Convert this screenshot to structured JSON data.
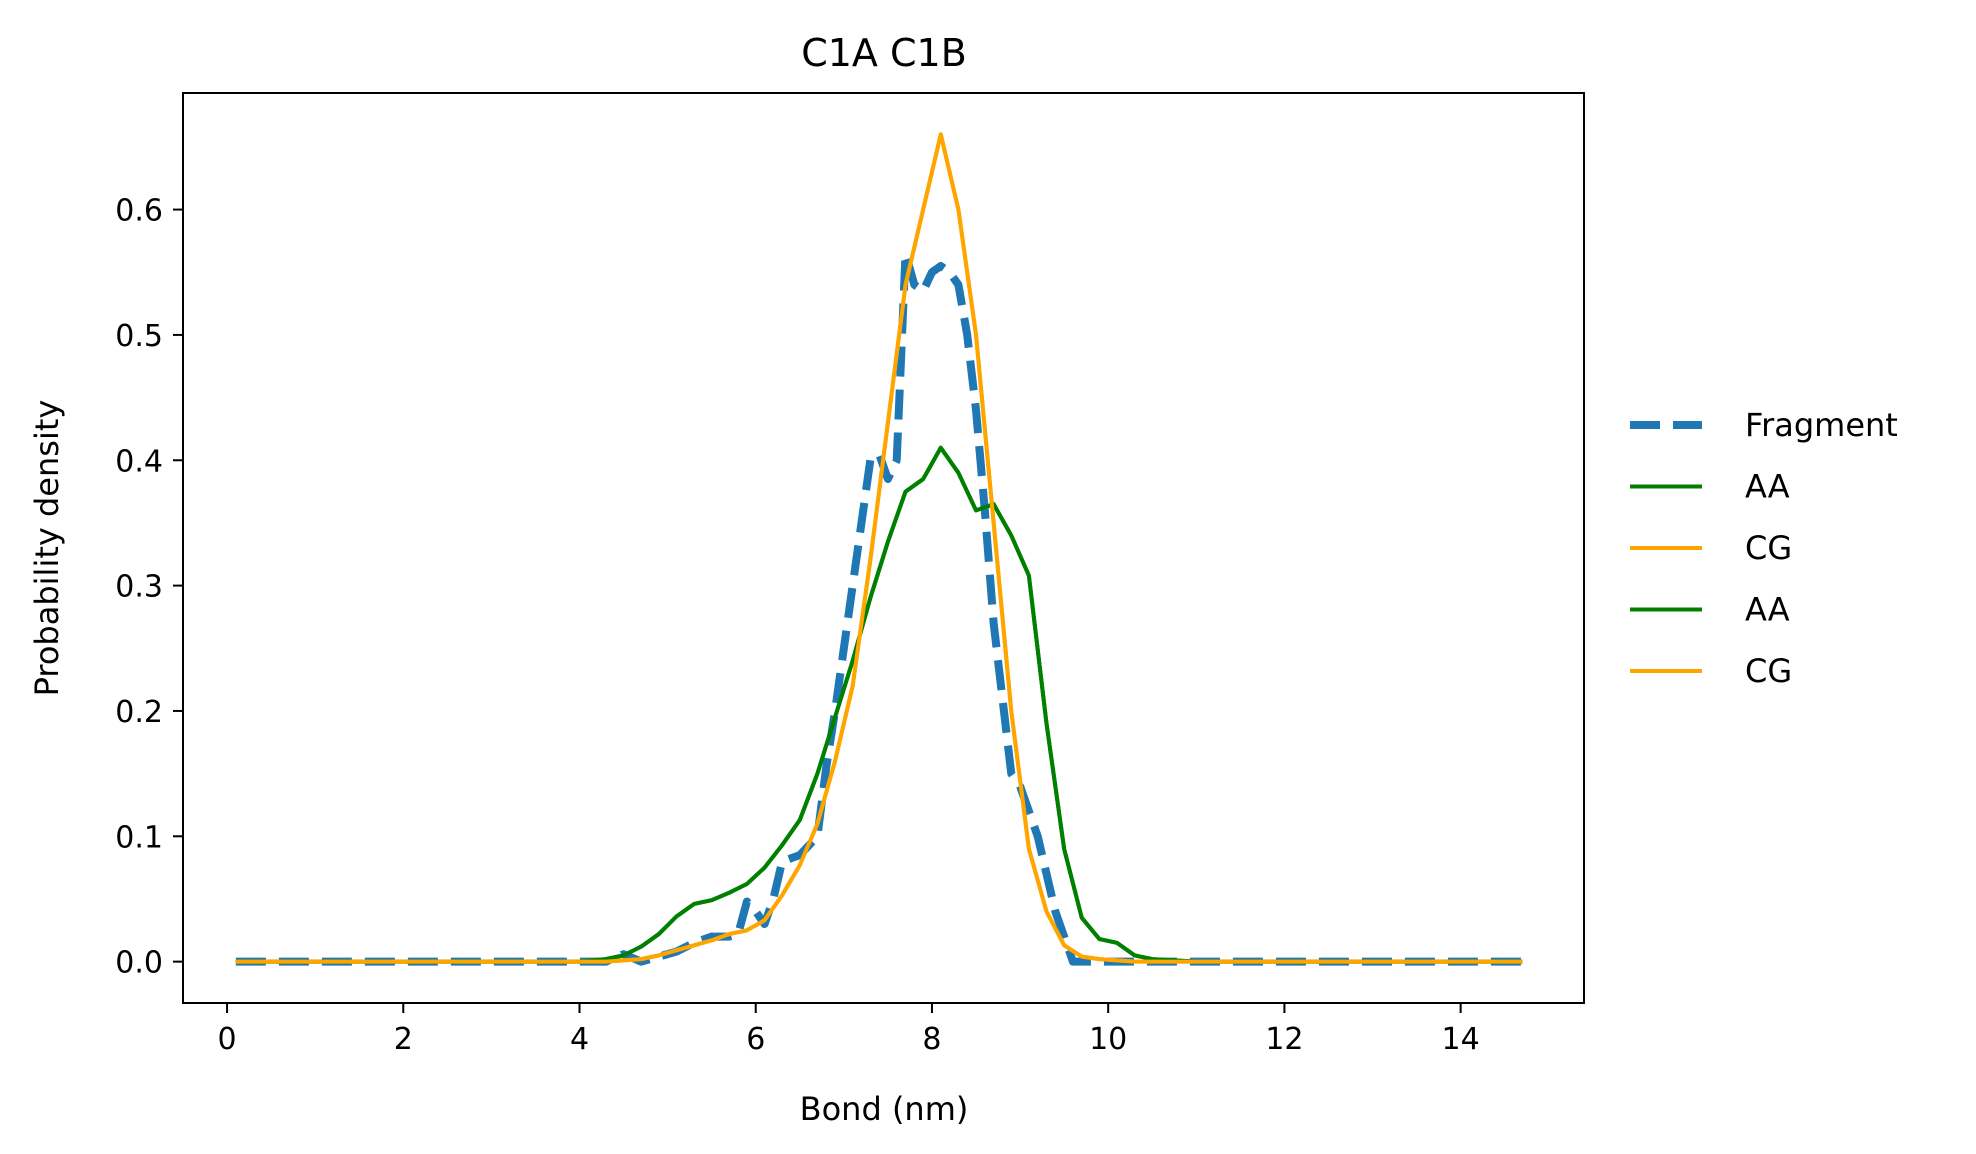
{
  "chart_data": {
    "type": "line",
    "title": "C1A C1B",
    "xlabel": "Bond (nm)",
    "ylabel": "Probability density",
    "xlim": [
      -0.5,
      15.4
    ],
    "ylim": [
      -0.033,
      0.693
    ],
    "xticks": [
      0,
      2,
      4,
      6,
      8,
      10,
      12,
      14
    ],
    "yticks": [
      0.0,
      0.1,
      0.2,
      0.3,
      0.4,
      0.5,
      0.6
    ],
    "xtick_labels": [
      "0",
      "2",
      "4",
      "6",
      "8",
      "10",
      "12",
      "14"
    ],
    "ytick_labels": [
      "0.0",
      "0.1",
      "0.2",
      "0.3",
      "0.4",
      "0.5",
      "0.6"
    ],
    "grid": false,
    "legend_position": "right-outside",
    "series": [
      {
        "name": "Fragment",
        "color": "#1f77b4",
        "style": "dashed",
        "x": [
          0.1,
          0.5,
          1.0,
          1.5,
          2.0,
          2.5,
          3.0,
          3.5,
          4.0,
          4.3,
          4.5,
          4.7,
          4.9,
          5.1,
          5.3,
          5.5,
          5.7,
          5.8,
          5.9,
          6.0,
          6.1,
          6.2,
          6.3,
          6.5,
          6.7,
          6.8,
          6.9,
          7.0,
          7.1,
          7.2,
          7.3,
          7.4,
          7.5,
          7.6,
          7.7,
          7.8,
          7.9,
          8.0,
          8.1,
          8.2,
          8.3,
          8.4,
          8.5,
          8.6,
          8.7,
          8.8,
          8.9,
          9.0,
          9.2,
          9.4,
          9.6,
          9.8,
          10.0,
          10.5,
          11.0,
          11.5,
          12.0,
          12.5,
          13.0,
          13.5,
          14.0,
          14.5,
          14.7
        ],
        "y": [
          0,
          0,
          0,
          0,
          0,
          0,
          0,
          0,
          0,
          0,
          0.006,
          0.0,
          0.004,
          0.008,
          0.015,
          0.02,
          0.02,
          0.022,
          0.048,
          0.04,
          0.03,
          0.05,
          0.08,
          0.085,
          0.1,
          0.155,
          0.2,
          0.25,
          0.3,
          0.35,
          0.4,
          0.405,
          0.385,
          0.4,
          0.565,
          0.54,
          0.535,
          0.55,
          0.555,
          0.55,
          0.54,
          0.5,
          0.44,
          0.36,
          0.27,
          0.21,
          0.15,
          0.14,
          0.1,
          0.04,
          0.0,
          0.0,
          0.0,
          0,
          0,
          0,
          0,
          0,
          0,
          0,
          0,
          0,
          0
        ]
      },
      {
        "name": "AA",
        "color": "#008000",
        "style": "solid",
        "x": [
          0.1,
          0.5,
          1.0,
          1.5,
          2.0,
          2.5,
          3.0,
          3.5,
          4.0,
          4.3,
          4.5,
          4.7,
          4.9,
          5.1,
          5.3,
          5.5,
          5.7,
          5.9,
          6.1,
          6.3,
          6.5,
          6.7,
          6.9,
          7.1,
          7.3,
          7.5,
          7.7,
          7.9,
          8.1,
          8.3,
          8.5,
          8.7,
          8.9,
          9.1,
          9.3,
          9.5,
          9.7,
          9.9,
          10.1,
          10.3,
          10.5,
          11.0,
          11.5,
          12.0,
          12.5,
          13.0,
          13.5,
          14.0,
          14.5,
          14.7
        ],
        "y": [
          0,
          0,
          0,
          0,
          0,
          0,
          0,
          0,
          0,
          0.002,
          0.005,
          0.012,
          0.022,
          0.036,
          0.046,
          0.049,
          0.055,
          0.062,
          0.075,
          0.093,
          0.113,
          0.15,
          0.195,
          0.24,
          0.29,
          0.335,
          0.375,
          0.385,
          0.41,
          0.39,
          0.36,
          0.365,
          0.34,
          0.308,
          0.19,
          0.09,
          0.035,
          0.018,
          0.015,
          0.005,
          0.002,
          0,
          0,
          0,
          0,
          0,
          0,
          0,
          0,
          0
        ]
      },
      {
        "name": "CG",
        "color": "#ffa500",
        "style": "solid",
        "x": [
          0.1,
          0.5,
          1.0,
          1.5,
          2.0,
          2.5,
          3.0,
          3.5,
          4.0,
          4.3,
          4.5,
          4.7,
          4.9,
          5.1,
          5.3,
          5.5,
          5.7,
          5.9,
          6.1,
          6.3,
          6.5,
          6.7,
          6.9,
          7.1,
          7.3,
          7.5,
          7.7,
          7.9,
          8.1,
          8.3,
          8.5,
          8.7,
          8.9,
          9.1,
          9.3,
          9.5,
          9.7,
          9.9,
          10.1,
          10.3,
          10.5,
          11.0,
          11.5,
          12.0,
          12.5,
          13.0,
          13.5,
          14.0,
          14.5,
          14.7
        ],
        "y": [
          0,
          0,
          0,
          0,
          0,
          0,
          0,
          0,
          0,
          0.0,
          0.001,
          0.002,
          0.005,
          0.009,
          0.013,
          0.017,
          0.022,
          0.025,
          0.033,
          0.053,
          0.077,
          0.11,
          0.16,
          0.22,
          0.32,
          0.43,
          0.54,
          0.6,
          0.66,
          0.6,
          0.5,
          0.35,
          0.2,
          0.09,
          0.04,
          0.013,
          0.004,
          0.002,
          0.001,
          0,
          0,
          0,
          0,
          0,
          0,
          0,
          0,
          0,
          0,
          0
        ]
      },
      {
        "name": "AA",
        "color": "#008000",
        "style": "solid",
        "x": [
          0.1,
          0.5,
          1.0,
          1.5,
          2.0,
          2.5,
          3.0,
          3.5,
          4.0,
          4.3,
          4.5,
          4.7,
          4.9,
          5.1,
          5.3,
          5.5,
          5.7,
          5.9,
          6.1,
          6.3,
          6.5,
          6.7,
          6.9,
          7.1,
          7.3,
          7.5,
          7.7,
          7.9,
          8.1,
          8.3,
          8.5,
          8.7,
          8.9,
          9.1,
          9.3,
          9.5,
          9.7,
          9.9,
          10.1,
          10.3,
          10.5,
          11.0,
          11.5,
          12.0,
          12.5,
          13.0,
          13.5,
          14.0,
          14.5,
          14.7
        ],
        "y": [
          0,
          0,
          0,
          0,
          0,
          0,
          0,
          0,
          0,
          0.002,
          0.005,
          0.012,
          0.022,
          0.036,
          0.046,
          0.049,
          0.055,
          0.062,
          0.075,
          0.093,
          0.113,
          0.15,
          0.195,
          0.24,
          0.29,
          0.335,
          0.375,
          0.385,
          0.41,
          0.39,
          0.36,
          0.365,
          0.34,
          0.308,
          0.19,
          0.09,
          0.035,
          0.018,
          0.015,
          0.005,
          0.002,
          0,
          0,
          0,
          0,
          0,
          0,
          0,
          0,
          0
        ]
      },
      {
        "name": "CG",
        "color": "#ffa500",
        "style": "solid",
        "x": [
          0.1,
          0.5,
          1.0,
          1.5,
          2.0,
          2.5,
          3.0,
          3.5,
          4.0,
          4.3,
          4.5,
          4.7,
          4.9,
          5.1,
          5.3,
          5.5,
          5.7,
          5.9,
          6.1,
          6.3,
          6.5,
          6.7,
          6.9,
          7.1,
          7.3,
          7.5,
          7.7,
          7.9,
          8.1,
          8.3,
          8.5,
          8.7,
          8.9,
          9.1,
          9.3,
          9.5,
          9.7,
          9.9,
          10.1,
          10.3,
          10.5,
          11.0,
          11.5,
          12.0,
          12.5,
          13.0,
          13.5,
          14.0,
          14.5,
          14.7
        ],
        "y": [
          0,
          0,
          0,
          0,
          0,
          0,
          0,
          0,
          0,
          0.0,
          0.001,
          0.002,
          0.005,
          0.009,
          0.013,
          0.017,
          0.022,
          0.025,
          0.033,
          0.053,
          0.077,
          0.11,
          0.16,
          0.22,
          0.32,
          0.43,
          0.54,
          0.6,
          0.66,
          0.6,
          0.5,
          0.35,
          0.2,
          0.09,
          0.04,
          0.013,
          0.004,
          0.002,
          0.001,
          0,
          0,
          0,
          0,
          0,
          0,
          0,
          0,
          0,
          0,
          0
        ]
      }
    ]
  }
}
